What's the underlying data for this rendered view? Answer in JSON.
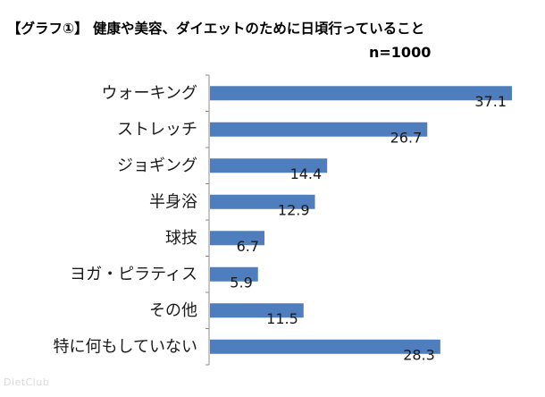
{
  "chart_data": {
    "type": "bar",
    "orientation": "horizontal",
    "title": "【グラフ①】 健康や美容、ダイエットのために日頃行っていること",
    "sample_size": "n=1000",
    "categories": [
      "ウォーキング",
      "ストレッチ",
      "ジョギング",
      "半身浴",
      "球技",
      "ヨガ・ピラティス",
      "その他",
      "特に何もしていない"
    ],
    "values": [
      37.1,
      26.7,
      14.4,
      12.9,
      6.7,
      5.9,
      11.5,
      28.3
    ],
    "value_labels": [
      "37.1",
      "26.7",
      "14.4",
      "12.9",
      "6.7",
      "5.9",
      "11.5",
      "28.3"
    ],
    "xlim": [
      0,
      37.1
    ],
    "grid": false,
    "bar_color": "#4f7ebf",
    "axis_color": "#8c8c8c"
  },
  "watermark": "DietClub"
}
